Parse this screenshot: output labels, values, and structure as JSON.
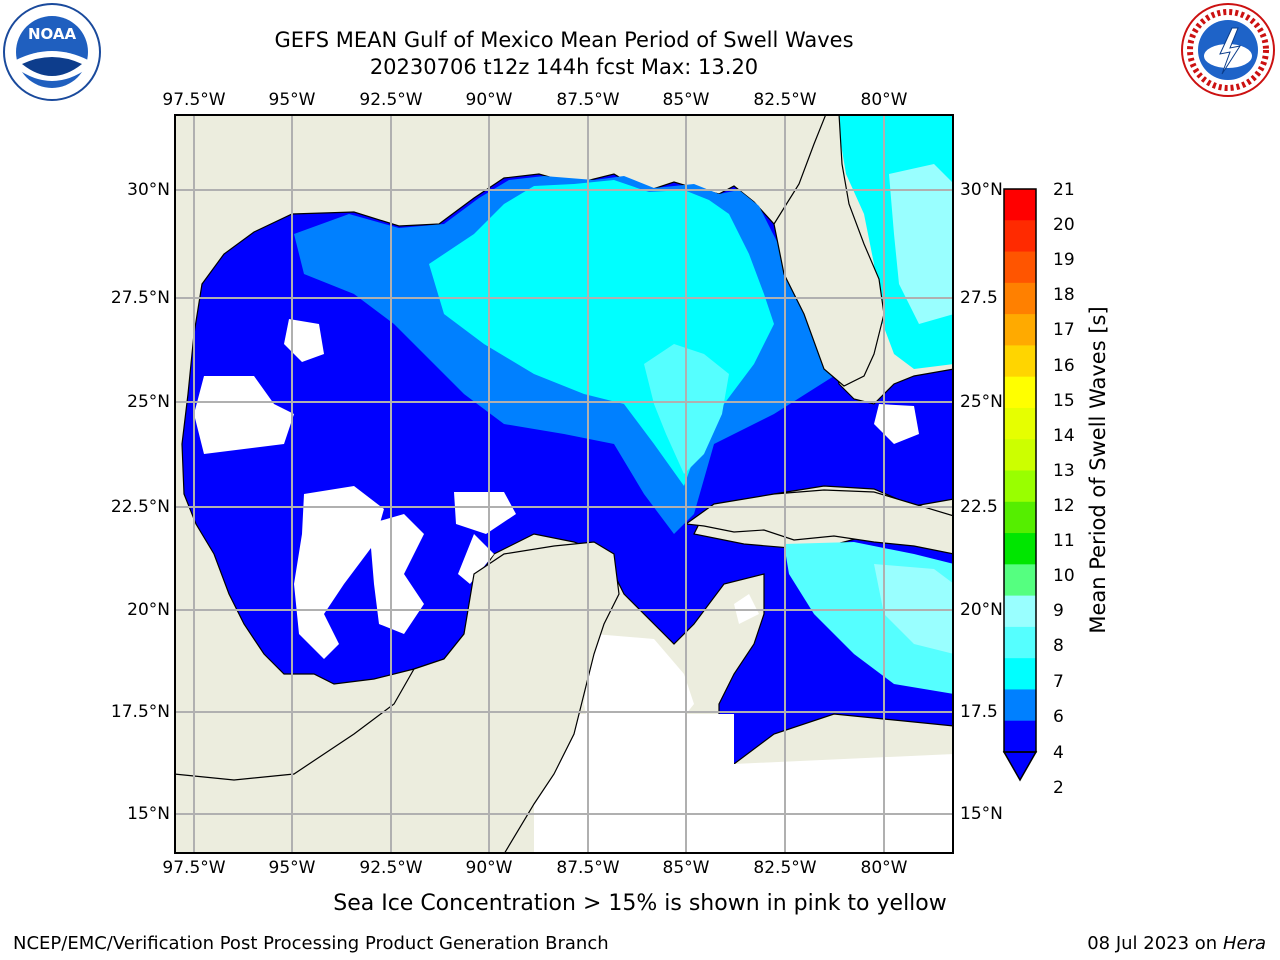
{
  "title": {
    "line1": "GEFS MEAN Gulf of Mexico Mean Period of Swell Waves",
    "line2": "20230706 t12z 144h fcst   Max: 13.20"
  },
  "logos": {
    "left": {
      "name": "noaa-logo",
      "text": "NOAA"
    },
    "right": {
      "name": "nws-logo",
      "text": "NATIONAL WEATHER SERVICE"
    }
  },
  "axes": {
    "x_ticks": [
      "97.5°W",
      "95°W",
      "92.5°W",
      "90°W",
      "87.5°W",
      "85°W",
      "82.5°W",
      "80°W"
    ],
    "y_ticks_left": [
      "30°N",
      "27.5°N",
      "25°N",
      "22.5°N",
      "20°N",
      "17.5°N",
      "15°N"
    ],
    "y_ticks_right": [
      "30°N",
      "27.5",
      "25°N",
      "22.5",
      "20°N",
      "17.5",
      "15°N"
    ]
  },
  "colorbar": {
    "label": "Mean Period of Swell Waves [s]",
    "ticks": [
      "21",
      "20",
      "19",
      "18",
      "17",
      "16",
      "15",
      "14",
      "13",
      "12",
      "11",
      "10",
      "9",
      "8",
      "7",
      "6",
      "4",
      "2"
    ],
    "colors": [
      "#ff0000",
      "#ff2a00",
      "#ff5500",
      "#ff8000",
      "#ffaa00",
      "#ffd500",
      "#ffff00",
      "#e6ff00",
      "#ccff00",
      "#99ff00",
      "#55ee00",
      "#00e600",
      "#55ff80",
      "#99ffff",
      "#55ffff",
      "#00ffff",
      "#0080ff",
      "#0000ff"
    ]
  },
  "map": {
    "ocean_fill": "#0000ff",
    "land_fill": "#ecedde"
  },
  "note": "Sea Ice Concentration > 15% is shown in pink to yellow",
  "footer": {
    "left": "NCEP/EMC/Verification Post Processing Product Generation Branch",
    "right_date": "08 Jul 2023 on ",
    "right_system": "Hera"
  }
}
